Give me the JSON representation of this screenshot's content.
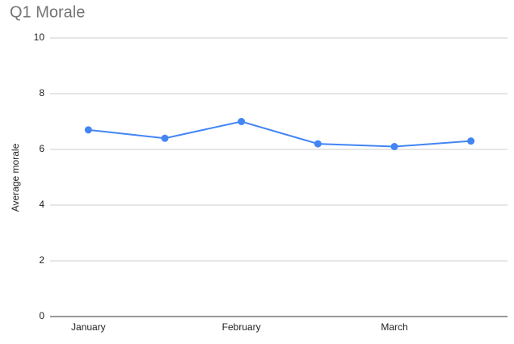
{
  "chart_data": {
    "type": "line",
    "title": "Q1 Morale",
    "y_label": "Average morale",
    "categories": [
      "January",
      null,
      "February",
      null,
      "March",
      null
    ],
    "series": [
      {
        "name": "Average morale",
        "color": "#4285f4",
        "values": [
          6.7,
          6.4,
          7.0,
          6.2,
          6.1,
          6.3
        ]
      }
    ],
    "ylim": [
      0,
      10
    ],
    "yticks": [
      0,
      2,
      4,
      6,
      8,
      10
    ],
    "grid": true
  }
}
